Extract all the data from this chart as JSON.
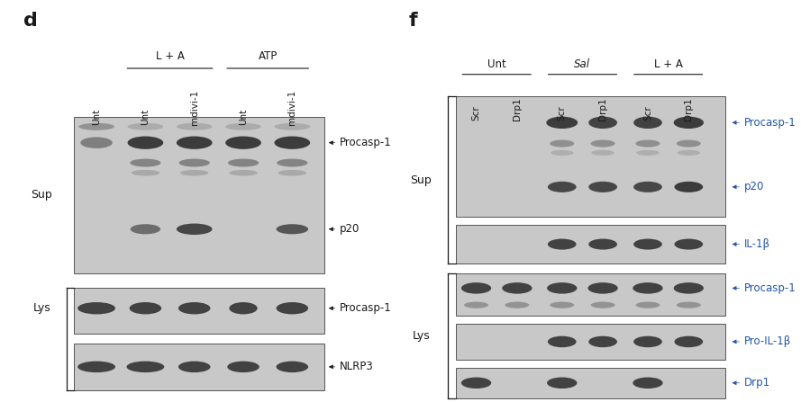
{
  "bg": "#ffffff",
  "blot_bg": "#c8c8c8",
  "band_dark": "#303030",
  "band_mid": "#606060",
  "band_light": "#909090",
  "black": "#1a1a1a",
  "blue": "#2255aa",
  "panel_d": {
    "label": "d",
    "group1_label": "L + A",
    "group2_label": "ATP",
    "col_labels": [
      "Unt",
      "Unt",
      "mdivi-1",
      "Unt",
      "mdivi-1"
    ],
    "sup_label": "Sup",
    "lys_label": "Lys",
    "blot_labels_right": [
      "Procasp-1",
      "p20",
      "Procasp-1",
      "NLRP3"
    ]
  },
  "panel_f": {
    "label": "f",
    "group1_label": "Unt",
    "group2_label": "Sal",
    "group3_label": "L + A",
    "col_labels": [
      "Scr",
      "Drp1",
      "Scr",
      "Drp1",
      "Scr",
      "Drp1"
    ],
    "sup_label": "Sup",
    "lys_label": "Lys",
    "blot_labels_right": [
      "Procasp-1",
      "p20",
      "IL-1β",
      "Procasp-1",
      "Pro-IL-1β",
      "Drp1"
    ]
  }
}
